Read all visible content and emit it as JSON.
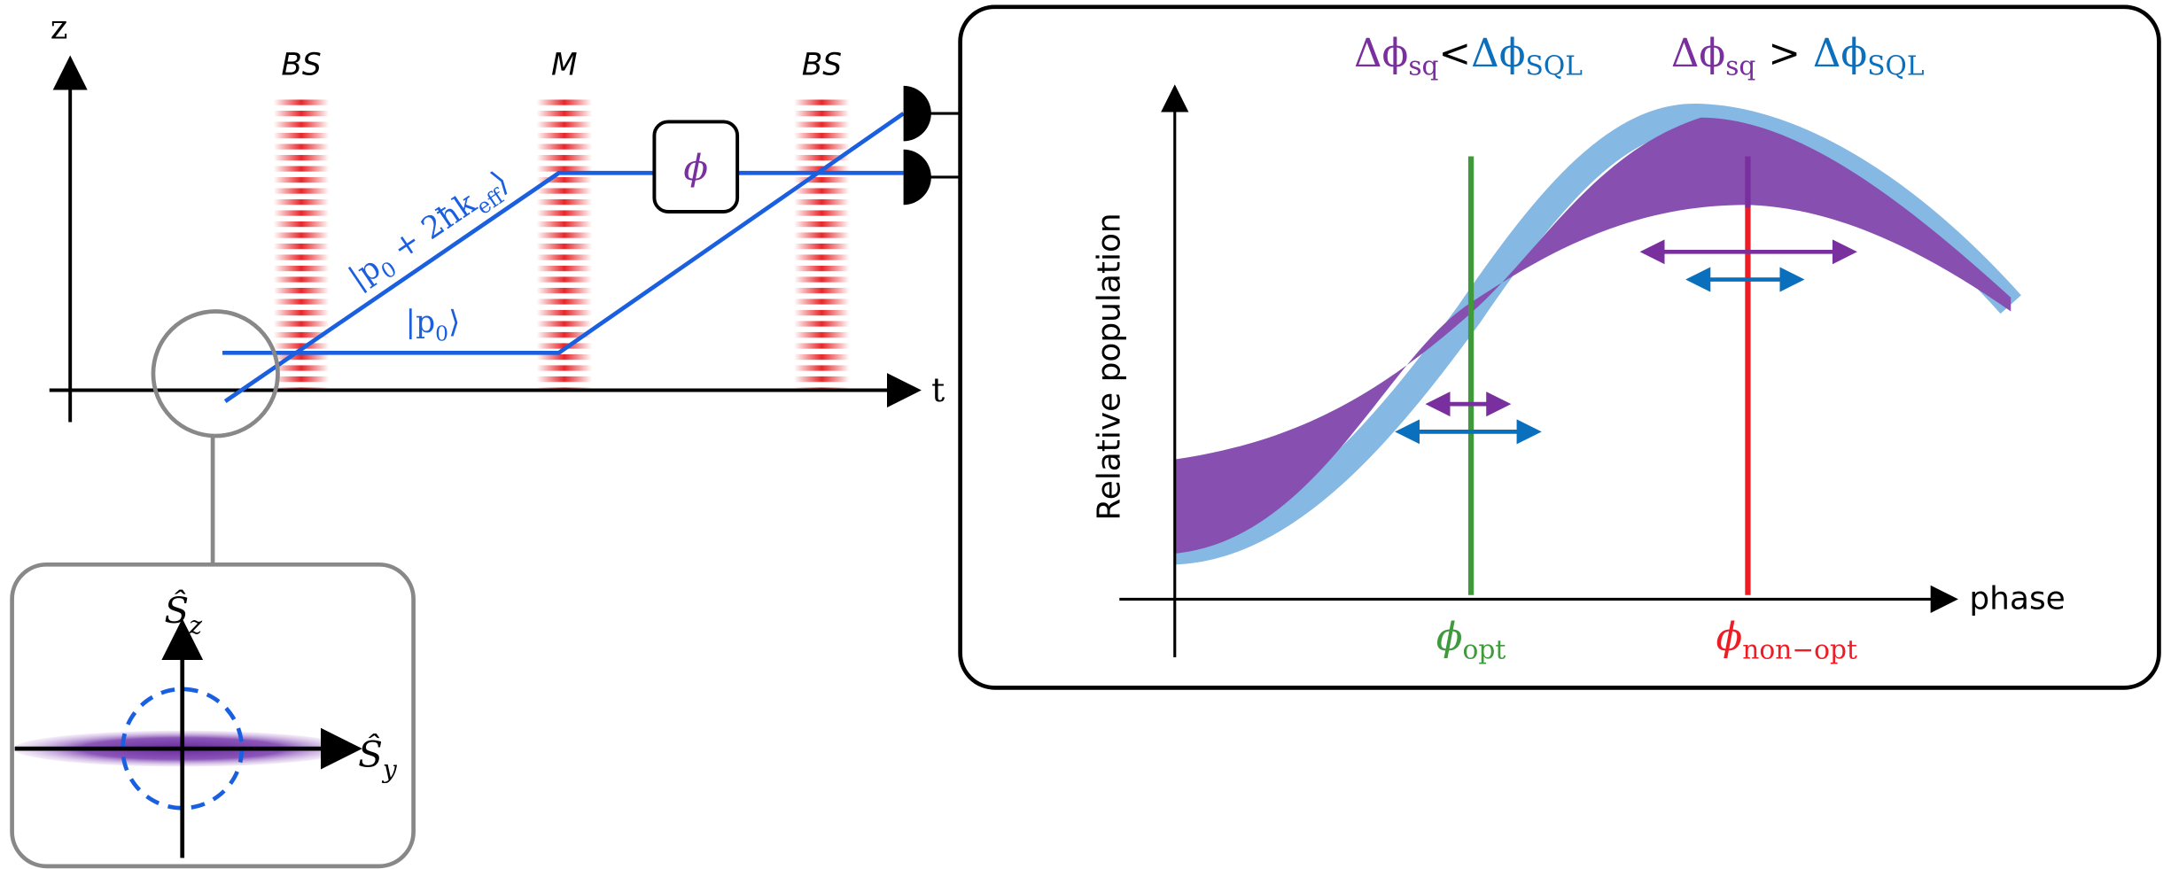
{
  "interferometer": {
    "axis_z": "z",
    "axis_t": "t",
    "pulses": [
      "BS",
      "M",
      "BS"
    ],
    "phase_box": "ϕ",
    "upper_state": [
      "|p",
      "0",
      " + 2ħk",
      "eff",
      "⟩"
    ],
    "lower_state": [
      "|p",
      "0",
      "⟩"
    ]
  },
  "inset": {
    "vertical_axis": [
      "Ŝ",
      "z"
    ],
    "horizontal_axis": [
      "Ŝ",
      "y"
    ]
  },
  "panel": {
    "title_left": [
      "Δϕ",
      "sq",
      "<",
      "Δϕ",
      "SQL"
    ],
    "title_right": [
      "Δϕ",
      "sq",
      " > ",
      "Δϕ",
      "SQL"
    ],
    "y_label": "Relative population",
    "x_label": "phase",
    "phi_opt": [
      "ϕ",
      "opt"
    ],
    "phi_non_opt": [
      "ϕ",
      "non−opt"
    ]
  }
}
